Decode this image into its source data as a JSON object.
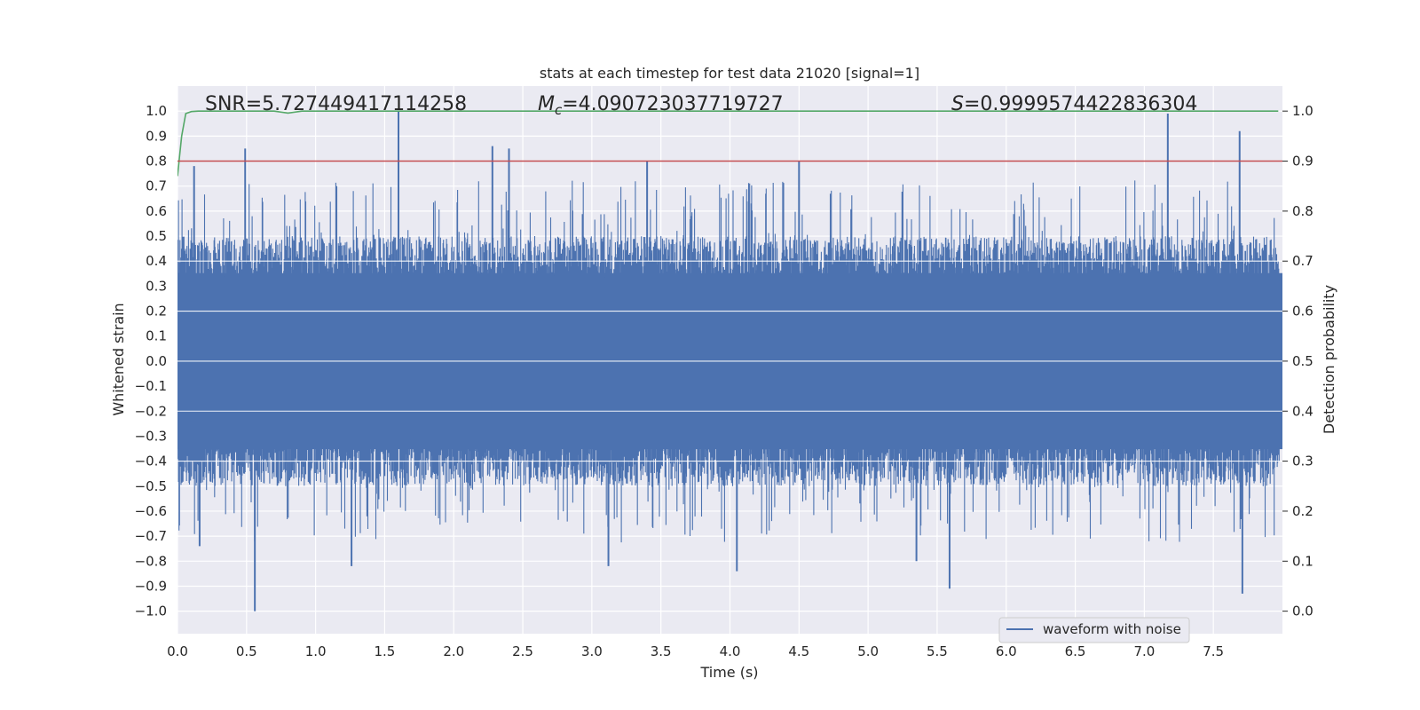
{
  "chart_data": {
    "type": "line",
    "title": "stats at each timestep for test data 21020 [signal=1]",
    "xlabel": "Time (s)",
    "ylabel": "Whitened strain",
    "ylabel_right": "Detection probability",
    "xlim": [
      0.0,
      8.0
    ],
    "ylim": [
      -1.09,
      1.1
    ],
    "ylim_right": [
      -0.045,
      1.05
    ],
    "x_ticks": [
      "0.0",
      "0.5",
      "1.0",
      "1.5",
      "2.0",
      "2.5",
      "3.0",
      "3.5",
      "4.0",
      "4.5",
      "5.0",
      "5.5",
      "6.0",
      "6.5",
      "7.0",
      "7.5"
    ],
    "y_ticks": [
      "1.0",
      "0.9",
      "0.8",
      "0.7",
      "0.6",
      "0.5",
      "0.4",
      "0.3",
      "0.2",
      "0.1",
      "0.0",
      "−0.1",
      "−0.2",
      "−0.3",
      "−0.4",
      "−0.5",
      "−0.6",
      "−0.7",
      "−0.8",
      "−0.9",
      "−1.0"
    ],
    "y_ticks_right": [
      "1.0",
      "0.9",
      "0.8",
      "0.7",
      "0.6",
      "0.5",
      "0.4",
      "0.3",
      "0.2",
      "0.1",
      "0.0"
    ],
    "grid": true,
    "legend_position": "lower-right",
    "annotations": {
      "snr": "SNR=5.727449417114258",
      "mc_symbol": "M",
      "mc_sub": "c",
      "mc_value": "=4.090723037719727",
      "s_symbol": "S",
      "s_value": "=0.9999574422836304"
    },
    "series": [
      {
        "name": "waveform with noise",
        "axis": "left",
        "color": "#4c72b0",
        "style": "noise",
        "envelope_typical": [
          -0.4,
          0.4
        ],
        "peaks": [
          {
            "x": 0.12,
            "y": 0.78
          },
          {
            "x": 0.49,
            "y": 0.85
          },
          {
            "x": 1.6,
            "y": 1.0
          },
          {
            "x": 2.28,
            "y": 0.86
          },
          {
            "x": 2.4,
            "y": 0.85
          },
          {
            "x": 3.4,
            "y": 0.8
          },
          {
            "x": 4.5,
            "y": 0.8
          },
          {
            "x": 7.17,
            "y": 0.99
          },
          {
            "x": 7.69,
            "y": 0.92
          },
          {
            "x": 0.56,
            "y": -1.0
          },
          {
            "x": 5.59,
            "y": -0.91
          },
          {
            "x": 7.71,
            "y": -0.93
          },
          {
            "x": 0.16,
            "y": -0.74
          },
          {
            "x": 1.26,
            "y": -0.82
          },
          {
            "x": 3.12,
            "y": -0.82
          },
          {
            "x": 4.05,
            "y": -0.84
          },
          {
            "x": 5.35,
            "y": -0.8
          }
        ]
      },
      {
        "name": "",
        "axis": "right",
        "color": "#55a868",
        "x": [
          0.0,
          0.03,
          0.06,
          0.1,
          0.15,
          0.3,
          0.7,
          0.8,
          0.9,
          1.5,
          3.0,
          5.0,
          7.0,
          7.97
        ],
        "y": [
          0.87,
          0.95,
          0.995,
          0.999,
          1.0,
          1.0,
          1.0,
          0.996,
          1.0,
          1.0,
          1.0,
          1.0,
          1.0,
          1.0
        ]
      },
      {
        "name": "",
        "axis": "left",
        "color": "#c44e52",
        "x": [
          0.0,
          8.0
        ],
        "y": [
          0.8,
          0.8
        ]
      }
    ]
  }
}
